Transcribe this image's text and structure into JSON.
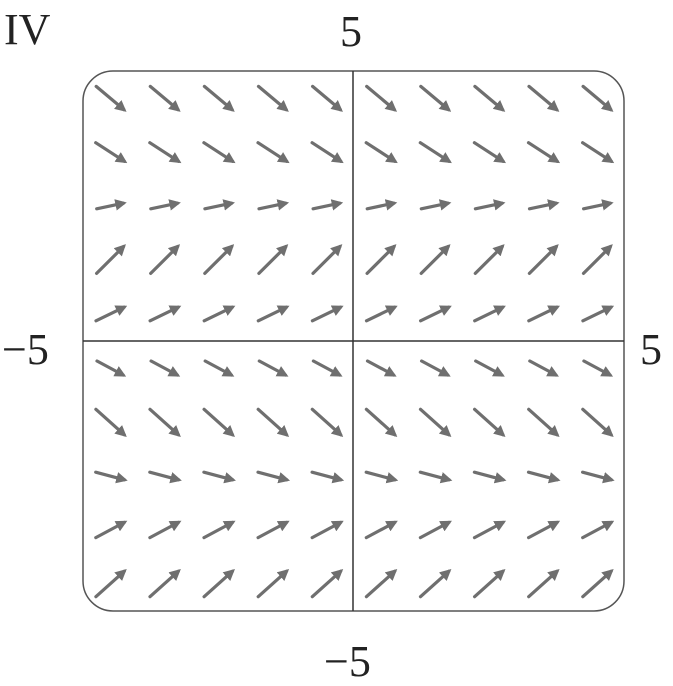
{
  "panel": {
    "label": "IV"
  },
  "axes": {
    "x_min_label": "−5",
    "x_max_label": "5",
    "y_min_label": "−5",
    "y_max_label": "5"
  },
  "colors": {
    "arrow": "#6f6f6f",
    "frame": "#555555",
    "axis": "#333333"
  },
  "field": {
    "x_range": [
      -5,
      5
    ],
    "y_range": [
      -5,
      5
    ],
    "row_y": [
      4.5,
      3.5,
      2.5,
      1.5,
      0.5,
      -0.5,
      -1.5,
      -2.5,
      -3.5,
      -4.5
    ],
    "col_x": [
      -4.5,
      -3.5,
      -2.5,
      -1.5,
      -0.5,
      0.5,
      1.5,
      2.5,
      3.5,
      4.5
    ],
    "row_direction_deg": [
      -40,
      -33,
      12,
      45,
      26,
      -28,
      -42,
      -15,
      28,
      42
    ],
    "row_relative_length": [
      0.95,
      0.9,
      0.72,
      1.0,
      0.82,
      0.78,
      1.0,
      0.78,
      0.85,
      1.0
    ]
  }
}
